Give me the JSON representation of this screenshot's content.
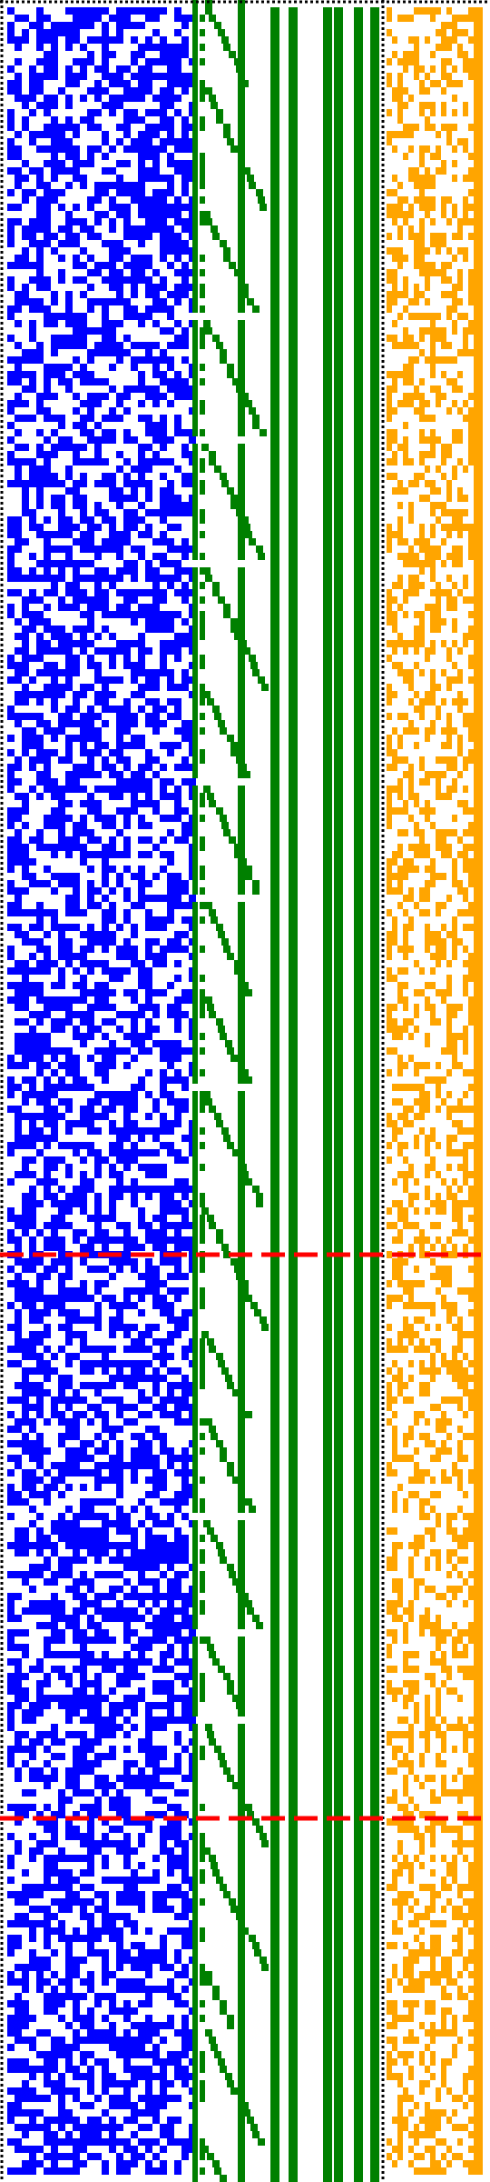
{
  "colors": {
    "background": "#ffffff",
    "panel_a": "#0000ff",
    "panel_b": "#008000",
    "panel_c": "#ffa500",
    "border": "#000000",
    "marker": "#ff0000"
  },
  "panels": [
    {
      "name": "blue-pixel-field",
      "color_key": "panel_a",
      "pattern": "random-dense",
      "density": 0.55
    },
    {
      "name": "green-staircase",
      "color_key": "panel_b",
      "pattern": "staircase"
    },
    {
      "name": "green-vertical-bars",
      "color_key": "panel_b",
      "pattern": "bars",
      "bar_count": 6
    },
    {
      "name": "orange-pixel-field",
      "color_key": "panel_c",
      "pattern": "random-sparse",
      "density": 0.42
    }
  ],
  "markers": [
    {
      "name": "red-dashed-line-1",
      "style": "dashed",
      "color_key": "marker"
    },
    {
      "name": "red-dashed-line-2",
      "style": "dashed",
      "color_key": "marker"
    }
  ],
  "frame": {
    "style": "dotted",
    "color_key": "border"
  }
}
